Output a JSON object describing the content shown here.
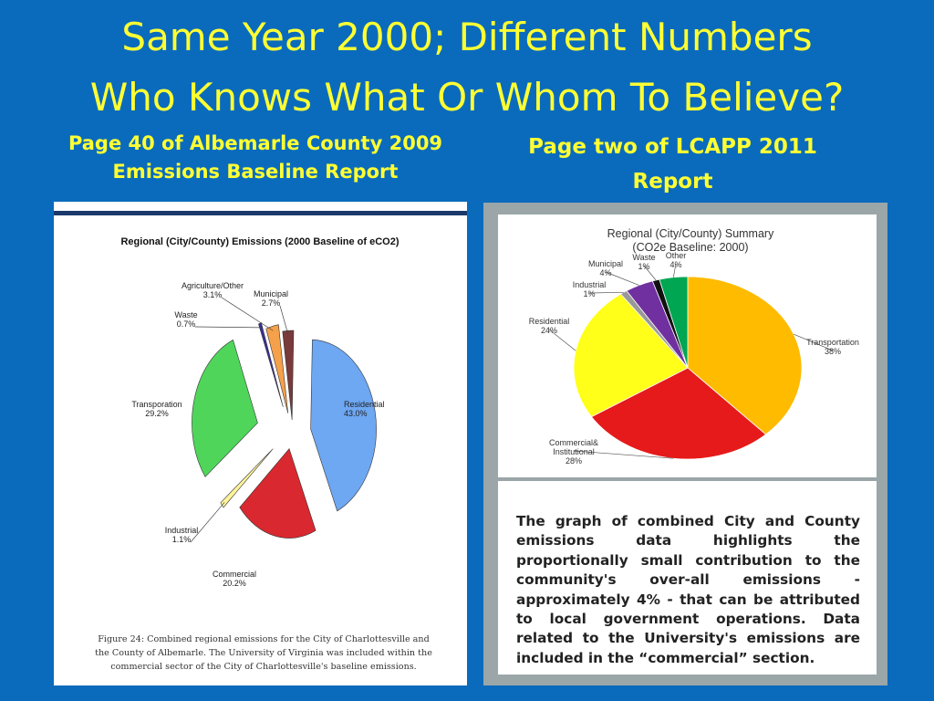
{
  "slide": {
    "title_line1": "Same Year 2000; Different Numbers",
    "title_line2": "Who Knows What Or Whom To Believe?",
    "left_caption": "Page 40 of Albemarle County 2009 Emissions Baseline Report",
    "right_caption": "Page two of LCAPP 2011 Report",
    "left_figure_caption": "Figure 24: Combined regional emissions for the City of Charlottesville and the County of Albemarle. The University of Virginia was included within the commercial sector of the City of Charlottesville's baseline emissions.",
    "right_text": "The graph of combined City and County emissions data highlights the proportionally small contribution to the community's over-all emissions - approximately 4% - that can be attributed to local government operations. Data related to the University's emissions are included in the “commercial” section."
  },
  "chart_data": [
    {
      "type": "pie",
      "title": "Regional (City/County) Emissions (2000 Baseline of eCO2)",
      "exploded": true,
      "slices": [
        {
          "label": "Residential",
          "value_label": "43.0%",
          "value": 43.0,
          "color": "#6ea7f2"
        },
        {
          "label": "Commercial",
          "value_label": "20.2%",
          "value": 20.2,
          "color": "#d9282f"
        },
        {
          "label": "Industrial",
          "value_label": "1.1%",
          "value": 1.1,
          "color": "#fff39a"
        },
        {
          "label": "Transporation",
          "value_label": "29.2%",
          "value": 29.2,
          "color": "#4fd65a"
        },
        {
          "label": "Waste",
          "value_label": "0.7%",
          "value": 0.7,
          "color": "#3a2f9a"
        },
        {
          "label": "Agriculture/Other",
          "value_label": "3.1%",
          "value": 3.1,
          "color": "#f5a04a"
        },
        {
          "label": "Municipal",
          "value_label": "2.7%",
          "value": 2.7,
          "color": "#7a3a3a"
        }
      ]
    },
    {
      "type": "pie",
      "title_line1": "Regional (City/County) Summary",
      "title_line2": "(CO2e Baseline: 2000)",
      "slices": [
        {
          "label": "Transportation",
          "value_label": "38%",
          "value": 38,
          "color": "#ffbb00"
        },
        {
          "label": "Commercial & Institutional",
          "value_label": "28%",
          "value": 28,
          "color": "#e61a1a"
        },
        {
          "label": "Residential",
          "value_label": "24%",
          "value": 24,
          "color": "#ffff19"
        },
        {
          "label": "Industrial",
          "value_label": "1%",
          "value": 1,
          "color": "#999999"
        },
        {
          "label": "Municipal",
          "value_label": "4%",
          "value": 4,
          "color": "#7030a0"
        },
        {
          "label": "Waste",
          "value_label": "1%",
          "value": 1,
          "color": "#111111"
        },
        {
          "label": "Other",
          "value_label": "4%",
          "value": 4,
          "color": "#00a651"
        }
      ]
    }
  ]
}
